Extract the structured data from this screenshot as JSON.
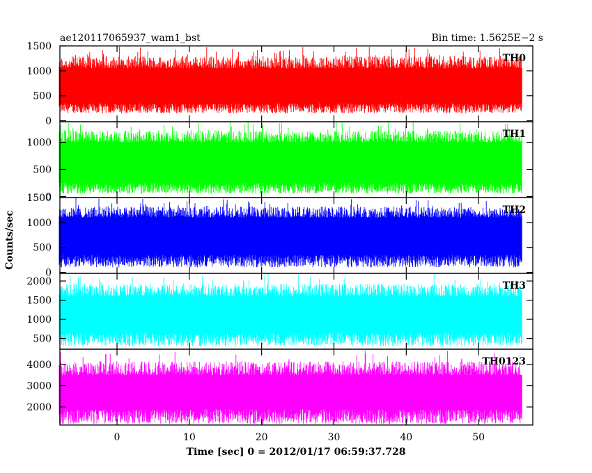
{
  "header": {
    "left": "ae120117065937_wam1_bst",
    "right": "Bin time: 1.5625E−2  s"
  },
  "chart_data": {
    "type": "line",
    "xlabel": "Time [sec] 0 = 2012/01/17 06:59:37.728",
    "ylabel": "Counts/sec",
    "xlim": [
      -7.9,
      57.5
    ],
    "x_ticks": [
      0,
      10,
      20,
      30,
      40,
      50
    ],
    "data_x_range": [
      -8,
      56
    ],
    "grid": false,
    "series": [
      {
        "name": "TH0",
        "color": "#ff0000",
        "ylim": [
          -20,
          1500
        ],
        "y_ticks": [
          0,
          500,
          1000,
          1500
        ],
        "mean": 700,
        "low_range": [
          150,
          350
        ],
        "high_range": [
          1050,
          1500
        ]
      },
      {
        "name": "TH1",
        "color": "#00ff00",
        "ylim": [
          -20,
          1380
        ],
        "y_ticks": [
          0,
          500,
          1000
        ],
        "mean": 650,
        "low_range": [
          50,
          250
        ],
        "high_range": [
          1000,
          1400
        ]
      },
      {
        "name": "TH2",
        "color": "#0000ff",
        "ylim": [
          -20,
          1500
        ],
        "y_ticks": [
          0,
          500,
          1000,
          1500
        ],
        "mean": 720,
        "low_range": [
          100,
          350
        ],
        "high_range": [
          1100,
          1500
        ]
      },
      {
        "name": "TH3",
        "color": "#00ffff",
        "ylim": [
          220,
          2200
        ],
        "y_ticks": [
          500,
          1000,
          1500,
          2000
        ],
        "mean": 1100,
        "low_range": [
          300,
          650
        ],
        "high_range": [
          1600,
          2200
        ]
      },
      {
        "name": "TH0123",
        "color": "#ff00ff",
        "ylim": [
          1150,
          4720
        ],
        "y_ticks": [
          2000,
          3000,
          4000
        ],
        "mean": 2800,
        "low_range": [
          1200,
          1900
        ],
        "high_range": [
          3500,
          4700
        ]
      }
    ]
  }
}
